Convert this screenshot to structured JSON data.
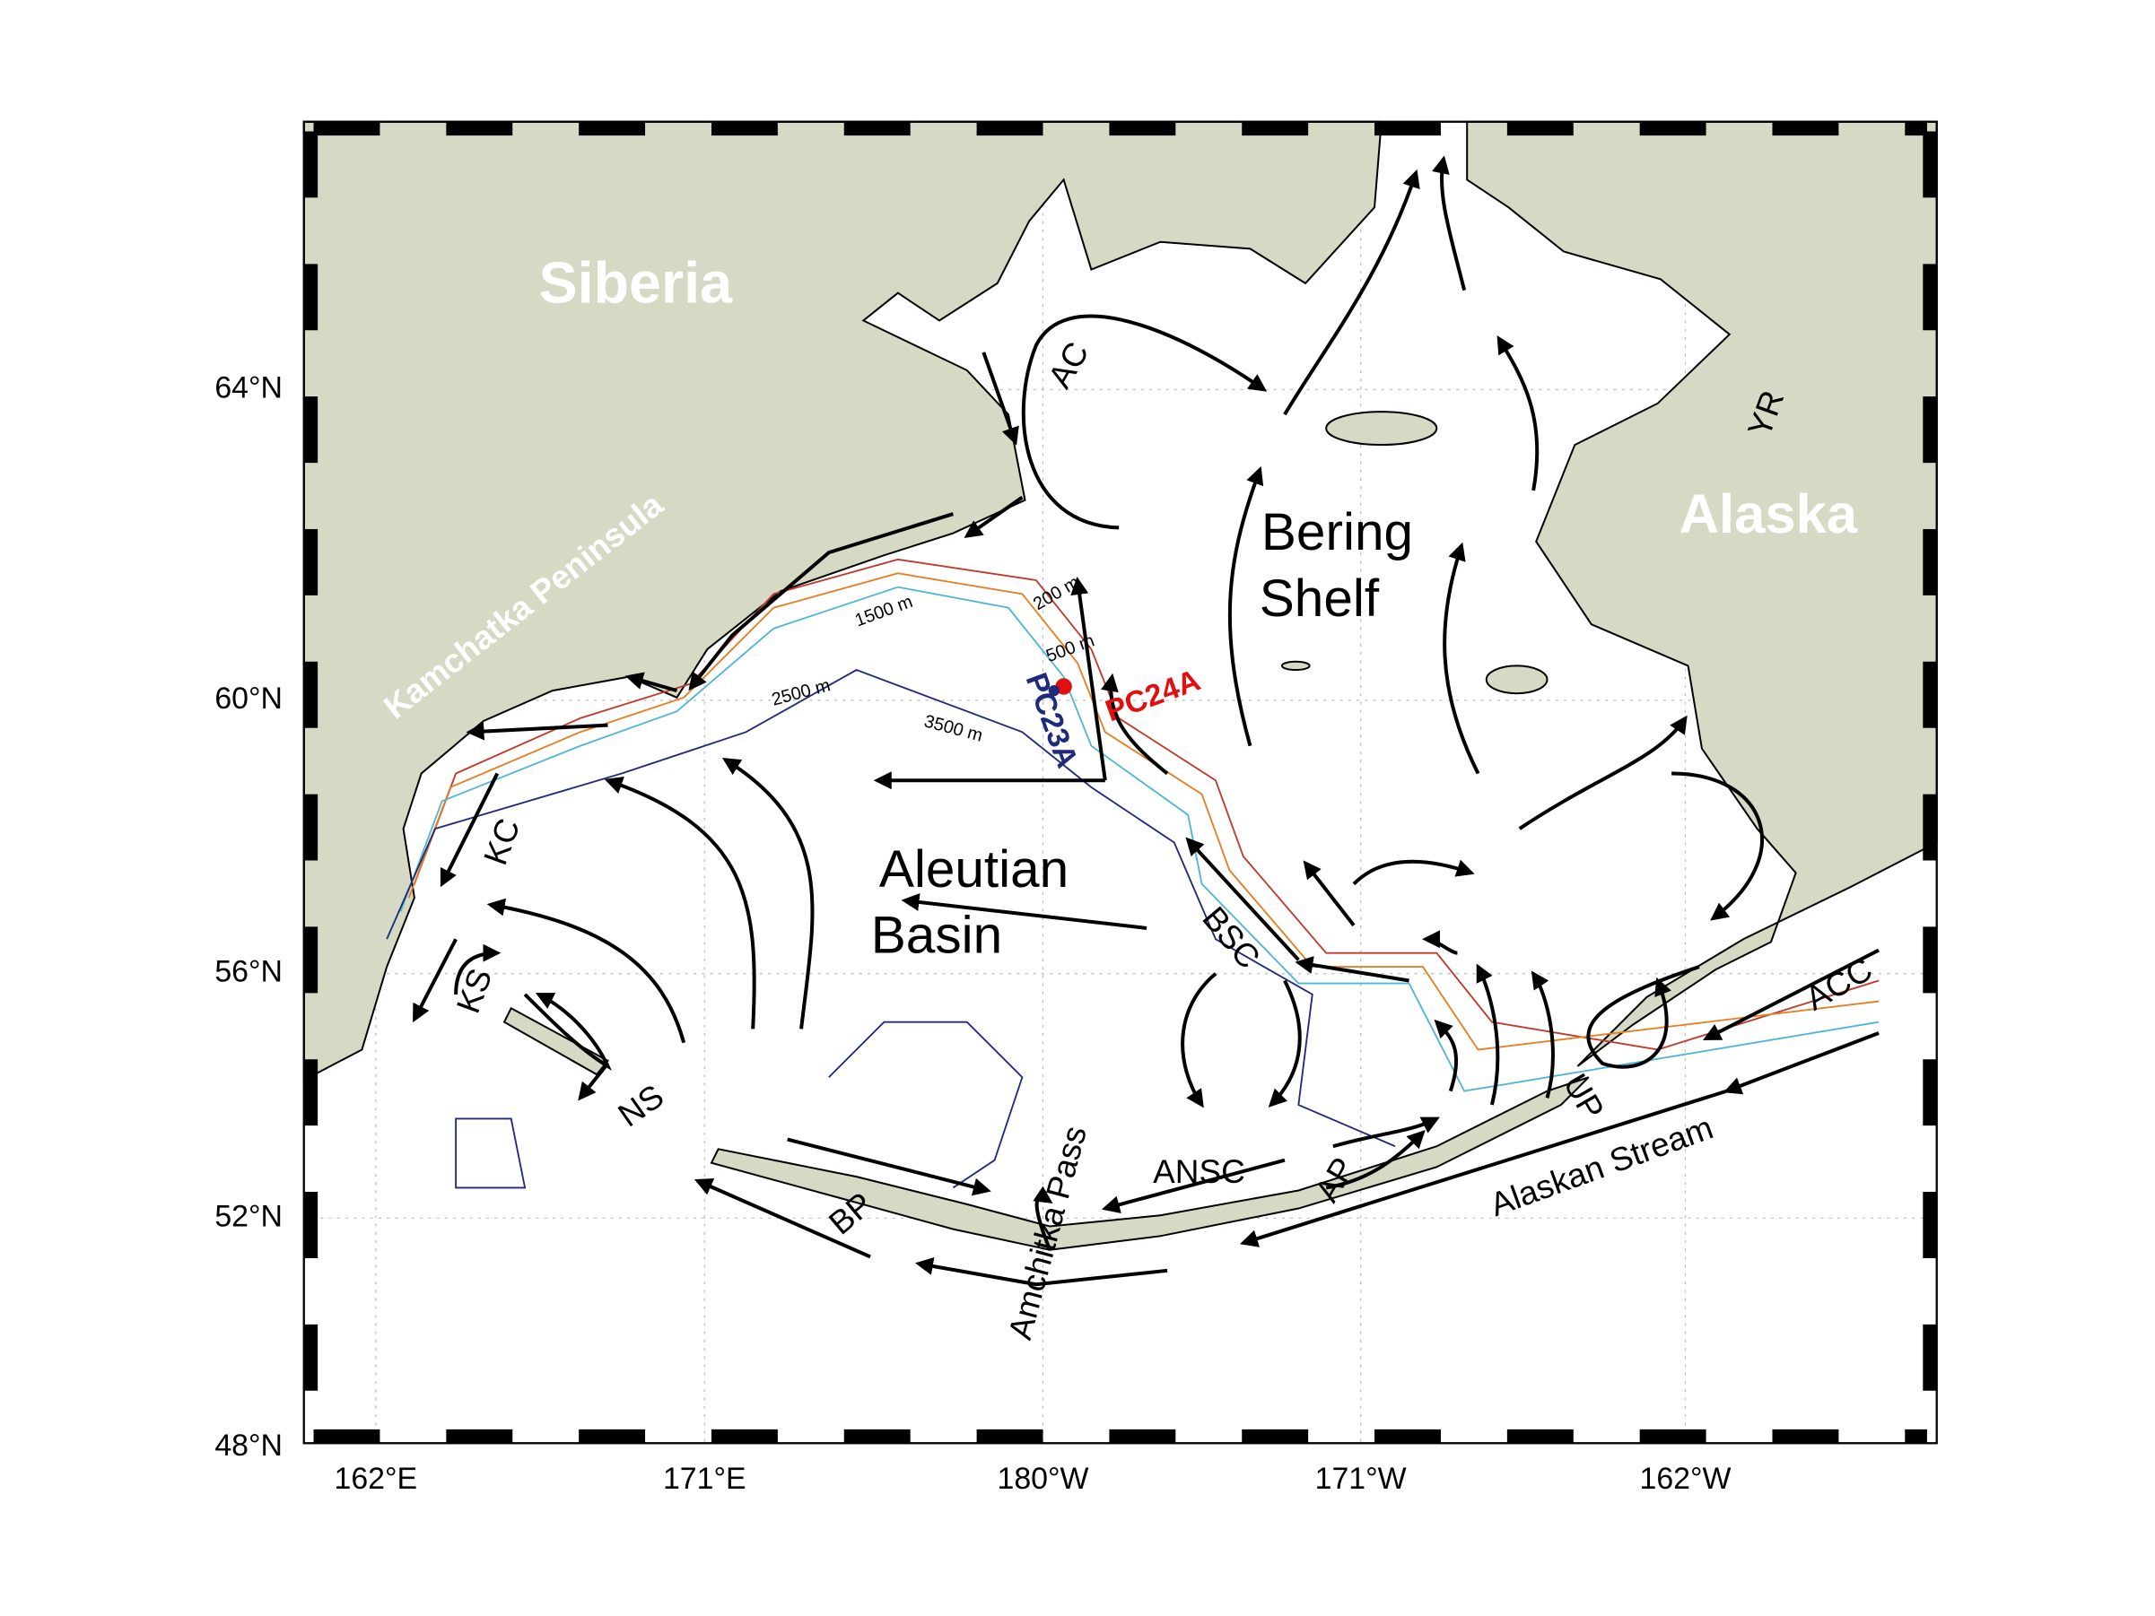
{
  "map": {
    "regions": {
      "siberia": "Siberia",
      "kamchatka": "Kamchatka Peninsula",
      "alaska": "Alaska",
      "shelf_1": "Bering",
      "shelf_2": "Shelf",
      "basin_1": "Aleutian",
      "basin_2": "Basin"
    },
    "currents": {
      "ac": "AC",
      "kc": "KC",
      "ks": "KS",
      "ns": "NS",
      "bp": "BP",
      "amchitka": "Amchitka Pass",
      "ansc": "ANSC",
      "ap": "AP",
      "up": "UP",
      "bsc": "BSC",
      "acc": "ACC",
      "alaskan_stream": "Alaskan Stream",
      "yr": "YR"
    },
    "cores": {
      "pc24a": "PC24A",
      "pc23a": "PC23A"
    },
    "contours": {
      "c200": "200 m",
      "c500": "500 m",
      "c1500": "1500 m",
      "c2500": "2500 m",
      "c3500": "3500 m"
    },
    "lat_labels": [
      "64°N",
      "60°N",
      "56°N",
      "52°N",
      "48°N"
    ],
    "lon_labels": [
      "162°E",
      "171°E",
      "180°W",
      "171°W",
      "162°W"
    ]
  }
}
